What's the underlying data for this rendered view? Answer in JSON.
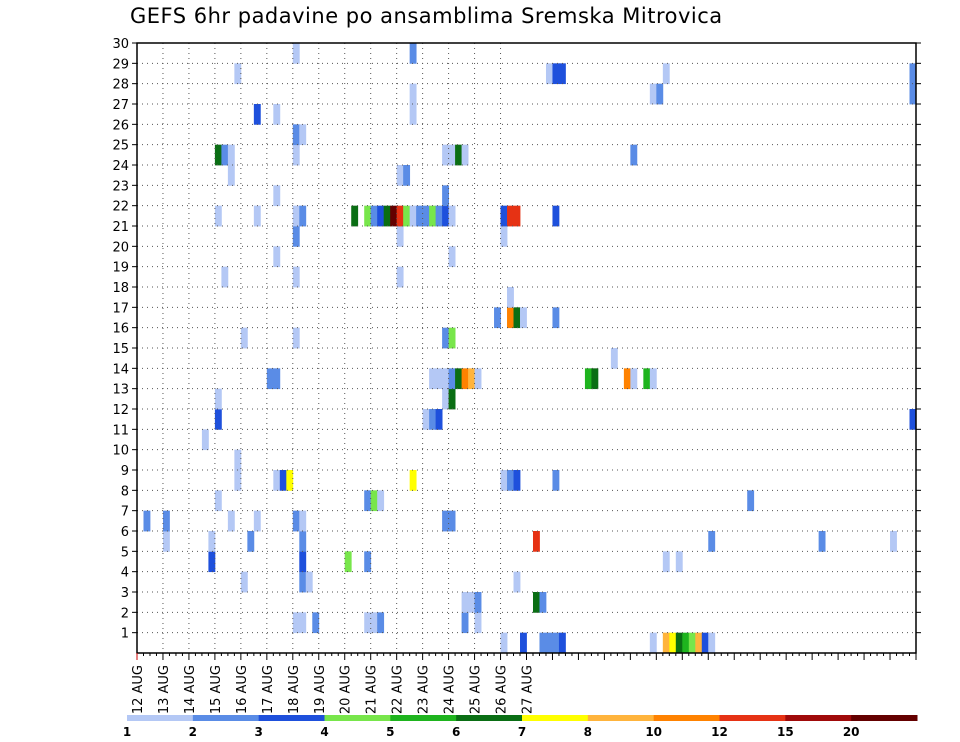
{
  "chart_data": {
    "type": "heatmap",
    "title": "GEFS 6hr padavine po ansamblima Sremska Mitrovica",
    "xlabel": "",
    "ylabel": "",
    "x_ticks": [
      "12 AUG",
      "13 AUG",
      "14 AUG",
      "15 AUG",
      "16 AUG",
      "17 AUG",
      "18 AUG",
      "19 AUG",
      "20 AUG",
      "21 AUG",
      "22 AUG",
      "23 AUG",
      "24 AUG",
      "25 AUG",
      "26 AUG",
      "27 AUG"
    ],
    "y_ticks": [
      "1",
      "2",
      "3",
      "4",
      "5",
      "6",
      "7",
      "8",
      "9",
      "10",
      "11",
      "12",
      "13",
      "14",
      "15",
      "16",
      "17",
      "18",
      "19",
      "20",
      "21",
      "22",
      "23",
      "24",
      "25",
      "26",
      "27",
      "28",
      "29",
      "30"
    ],
    "x_unit": "6-hour step from 12 AUG 00Z",
    "ylim": [
      0,
      30
    ],
    "grid": true,
    "colorbar": {
      "labels": [
        "1",
        "2",
        "3",
        "4",
        "5",
        "6",
        "7",
        "8",
        "10",
        "12",
        "15",
        "20"
      ],
      "colors": [
        "#b4c8f5",
        "#5a8ce6",
        "#1e50dc",
        "#78e64b",
        "#1eb41e",
        "#0a6e14",
        "#ffff00",
        "#ffb43c",
        "#ff8200",
        "#e63214",
        "#a00a0a",
        "#640000"
      ]
    },
    "cells": [
      [
        56,
        0,
        1
      ],
      [
        59,
        0,
        3
      ],
      [
        62,
        0,
        2
      ],
      [
        63,
        0,
        2
      ],
      [
        64,
        0,
        2
      ],
      [
        65,
        0,
        3
      ],
      [
        79,
        0,
        1
      ],
      [
        81,
        0,
        8
      ],
      [
        82,
        0,
        7
      ],
      [
        83,
        0,
        6
      ],
      [
        84,
        0,
        5
      ],
      [
        85,
        0,
        4
      ],
      [
        86,
        0,
        8
      ],
      [
        87,
        0,
        3
      ],
      [
        88,
        0,
        1
      ],
      [
        24,
        1,
        1
      ],
      [
        25,
        1,
        1
      ],
      [
        27,
        1,
        2
      ],
      [
        35,
        1,
        1
      ],
      [
        36,
        1,
        1
      ],
      [
        37,
        1,
        2
      ],
      [
        50,
        1,
        2
      ],
      [
        52,
        1,
        1
      ],
      [
        50,
        2,
        1
      ],
      [
        51,
        2,
        1
      ],
      [
        52,
        2,
        2
      ],
      [
        61,
        2,
        6
      ],
      [
        62,
        2,
        2
      ],
      [
        16,
        3,
        1
      ],
      [
        25,
        3,
        2
      ],
      [
        26,
        3,
        1
      ],
      [
        58,
        3,
        1
      ],
      [
        11,
        4,
        3
      ],
      [
        25,
        4,
        3
      ],
      [
        32,
        4,
        4
      ],
      [
        35,
        4,
        2
      ],
      [
        81,
        4,
        1
      ],
      [
        83,
        4,
        1
      ],
      [
        4,
        5,
        1
      ],
      [
        11,
        5,
        1
      ],
      [
        17,
        5,
        2
      ],
      [
        25,
        5,
        2
      ],
      [
        61,
        5,
        10
      ],
      [
        88,
        5,
        2
      ],
      [
        105,
        5,
        2
      ],
      [
        116,
        5,
        1
      ],
      [
        1,
        6,
        2
      ],
      [
        4,
        6,
        2
      ],
      [
        14,
        6,
        1
      ],
      [
        18,
        6,
        1
      ],
      [
        24,
        6,
        2
      ],
      [
        25,
        6,
        1
      ],
      [
        47,
        6,
        2
      ],
      [
        48,
        6,
        2
      ],
      [
        12,
        7,
        1
      ],
      [
        35,
        7,
        2
      ],
      [
        36,
        7,
        4
      ],
      [
        37,
        7,
        1
      ],
      [
        94,
        7,
        2
      ],
      [
        15,
        8,
        1
      ],
      [
        21,
        8,
        1
      ],
      [
        22,
        8,
        3
      ],
      [
        23,
        8,
        7
      ],
      [
        42,
        8,
        7
      ],
      [
        56,
        8,
        1
      ],
      [
        57,
        8,
        2
      ],
      [
        58,
        8,
        3
      ],
      [
        64,
        8,
        2
      ],
      [
        15,
        9,
        1
      ],
      [
        10,
        10,
        1
      ],
      [
        12,
        11,
        3
      ],
      [
        44,
        11,
        1
      ],
      [
        45,
        11,
        2
      ],
      [
        46,
        11,
        3
      ],
      [
        119,
        11,
        3
      ],
      [
        12,
        12,
        1
      ],
      [
        47,
        12,
        1
      ],
      [
        48,
        12,
        6
      ],
      [
        20,
        13,
        2
      ],
      [
        21,
        13,
        2
      ],
      [
        45,
        13,
        1
      ],
      [
        46,
        13,
        1
      ],
      [
        47,
        13,
        1
      ],
      [
        48,
        13,
        2
      ],
      [
        49,
        13,
        6
      ],
      [
        50,
        13,
        9
      ],
      [
        51,
        13,
        8
      ],
      [
        52,
        13,
        1
      ],
      [
        69,
        13,
        5
      ],
      [
        70,
        13,
        6
      ],
      [
        75,
        13,
        9
      ],
      [
        76,
        13,
        1
      ],
      [
        78,
        13,
        5
      ],
      [
        79,
        13,
        1
      ],
      [
        73,
        14,
        1
      ],
      [
        16,
        15,
        1
      ],
      [
        24,
        15,
        1
      ],
      [
        47,
        15,
        2
      ],
      [
        48,
        15,
        4
      ],
      [
        55,
        16,
        2
      ],
      [
        57,
        16,
        9
      ],
      [
        58,
        16,
        6
      ],
      [
        59,
        16,
        1
      ],
      [
        64,
        16,
        2
      ],
      [
        57,
        17,
        1
      ],
      [
        13,
        18,
        1
      ],
      [
        24,
        18,
        1
      ],
      [
        40,
        18,
        1
      ],
      [
        21,
        19,
        1
      ],
      [
        48,
        19,
        1
      ],
      [
        24,
        20,
        2
      ],
      [
        40,
        20,
        1
      ],
      [
        56,
        20,
        1
      ],
      [
        12,
        21,
        1
      ],
      [
        18,
        21,
        1
      ],
      [
        24,
        21,
        1
      ],
      [
        25,
        21,
        2
      ],
      [
        33,
        21,
        6
      ],
      [
        35,
        21,
        4
      ],
      [
        36,
        21,
        2
      ],
      [
        37,
        21,
        3
      ],
      [
        38,
        21,
        6
      ],
      [
        39,
        21,
        12
      ],
      [
        40,
        21,
        10
      ],
      [
        41,
        21,
        4
      ],
      [
        42,
        21,
        1
      ],
      [
        43,
        21,
        2
      ],
      [
        44,
        21,
        2
      ],
      [
        45,
        21,
        4
      ],
      [
        46,
        21,
        2
      ],
      [
        47,
        21,
        3
      ],
      [
        48,
        21,
        1
      ],
      [
        56,
        21,
        3
      ],
      [
        57,
        21,
        10
      ],
      [
        58,
        21,
        10
      ],
      [
        64,
        21,
        3
      ],
      [
        21,
        22,
        1
      ],
      [
        47,
        22,
        2
      ],
      [
        14,
        23,
        1
      ],
      [
        40,
        23,
        1
      ],
      [
        41,
        23,
        2
      ],
      [
        12,
        24,
        6
      ],
      [
        13,
        24,
        2
      ],
      [
        14,
        24,
        1
      ],
      [
        24,
        24,
        1
      ],
      [
        47,
        24,
        1
      ],
      [
        48,
        24,
        1
      ],
      [
        49,
        24,
        6
      ],
      [
        50,
        24,
        1
      ],
      [
        76,
        24,
        2
      ],
      [
        24,
        25,
        2
      ],
      [
        25,
        25,
        1
      ],
      [
        18,
        26,
        3
      ],
      [
        21,
        26,
        1
      ],
      [
        42,
        26,
        1
      ],
      [
        42,
        27,
        1
      ],
      [
        79,
        27,
        1
      ],
      [
        80,
        27,
        2
      ],
      [
        119,
        27,
        2
      ],
      [
        15,
        28,
        1
      ],
      [
        63,
        28,
        1
      ],
      [
        64,
        28,
        3
      ],
      [
        65,
        28,
        3
      ],
      [
        81,
        28,
        1
      ],
      [
        119,
        28,
        2
      ],
      [
        24,
        29,
        1
      ],
      [
        42,
        29,
        2
      ]
    ]
  }
}
